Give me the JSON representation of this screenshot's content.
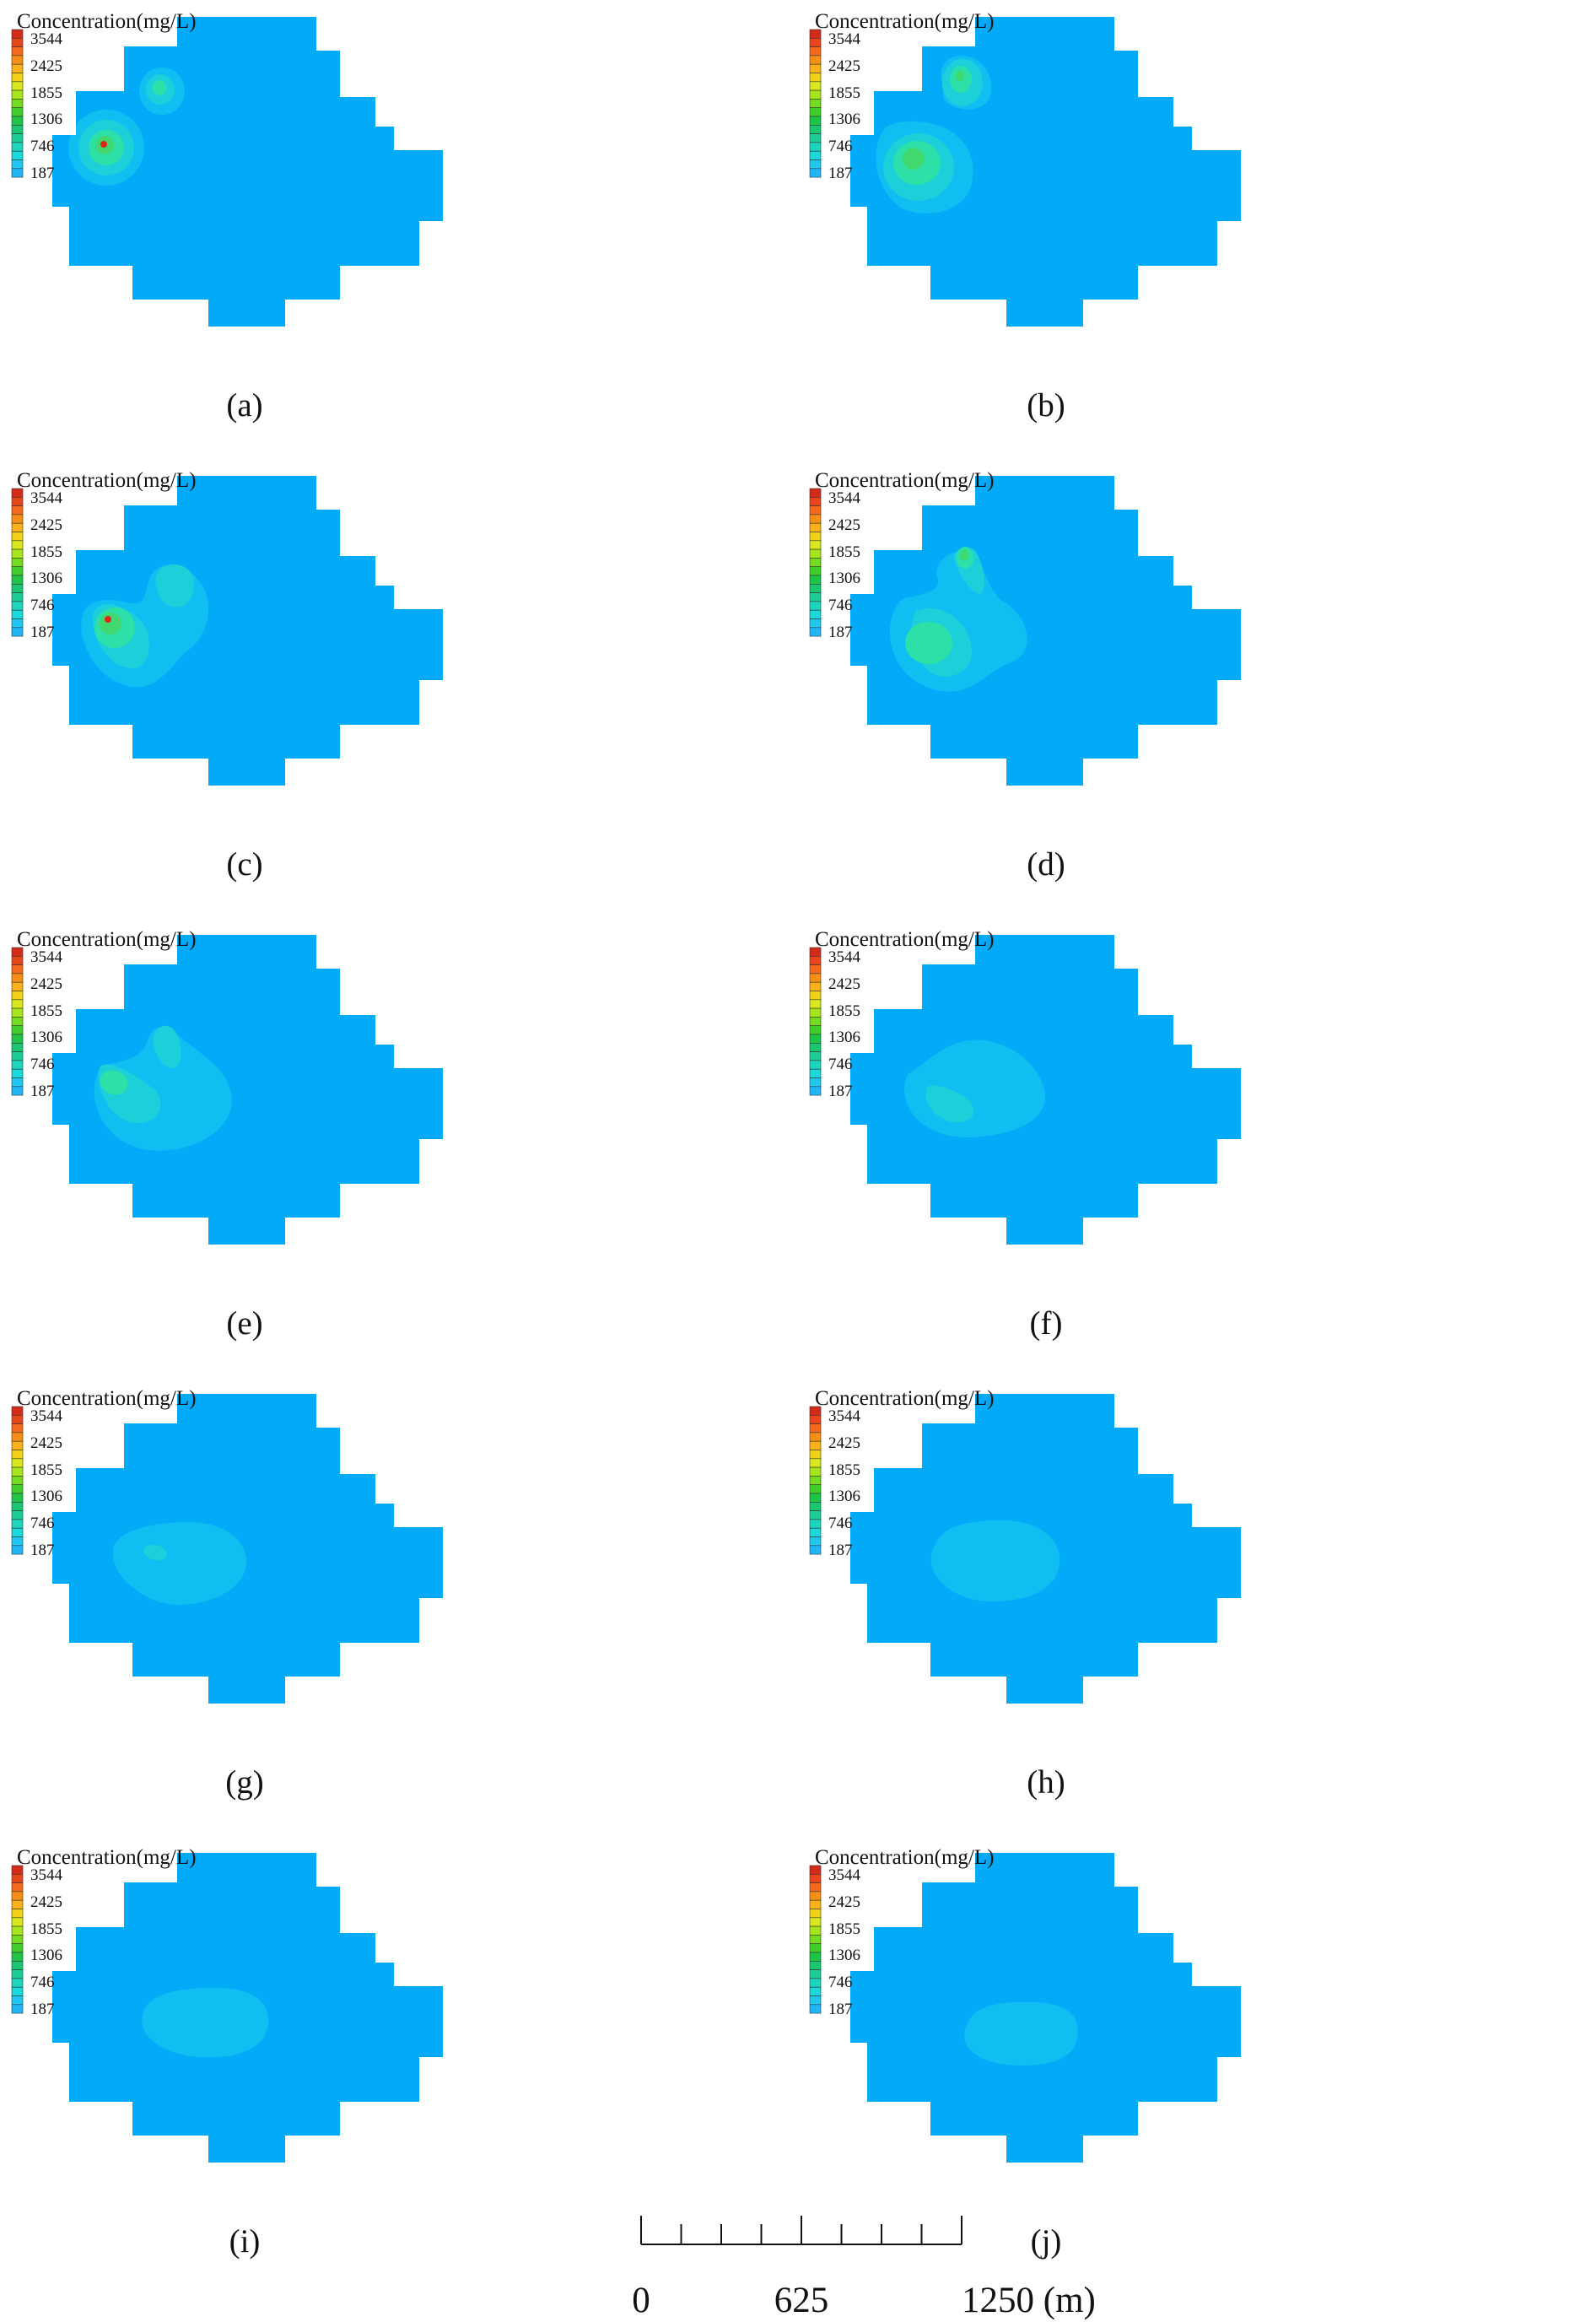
{
  "legend": {
    "title": "Concentration(mg/L)",
    "ticks": [
      "3544",
      "2425",
      "1855",
      "1306",
      "746",
      "187"
    ],
    "colors": [
      "#d42a1a",
      "#e8451a",
      "#f36a1a",
      "#f98e16",
      "#fab216",
      "#f2d11a",
      "#d6e81e",
      "#a8e61c",
      "#72dc1e",
      "#40cf2a",
      "#1ec445",
      "#1ac66f",
      "#1ccd98",
      "#1cd6be",
      "#1cd9dc",
      "#1ec8f0",
      "#20b6f6"
    ]
  },
  "colors": {
    "background": "#02aaf8",
    "plume_edge": "#10bff2",
    "plume_mid": "#1ccfd9",
    "plume_core": "#2ce0a8",
    "plume_green": "#42d870",
    "plume_hot": "#e12616"
  },
  "panels": [
    {
      "label": "(a)"
    },
    {
      "label": "(b)"
    },
    {
      "label": "(c)"
    },
    {
      "label": "(d)"
    },
    {
      "label": "(e)"
    },
    {
      "label": "(f)"
    },
    {
      "label": "(g)"
    },
    {
      "label": "(h)"
    },
    {
      "label": "(i)"
    },
    {
      "label": "(j)"
    }
  ],
  "scale_bar": {
    "labels": [
      "0",
      "625",
      "1250 (m)"
    ],
    "divisions": 8
  }
}
